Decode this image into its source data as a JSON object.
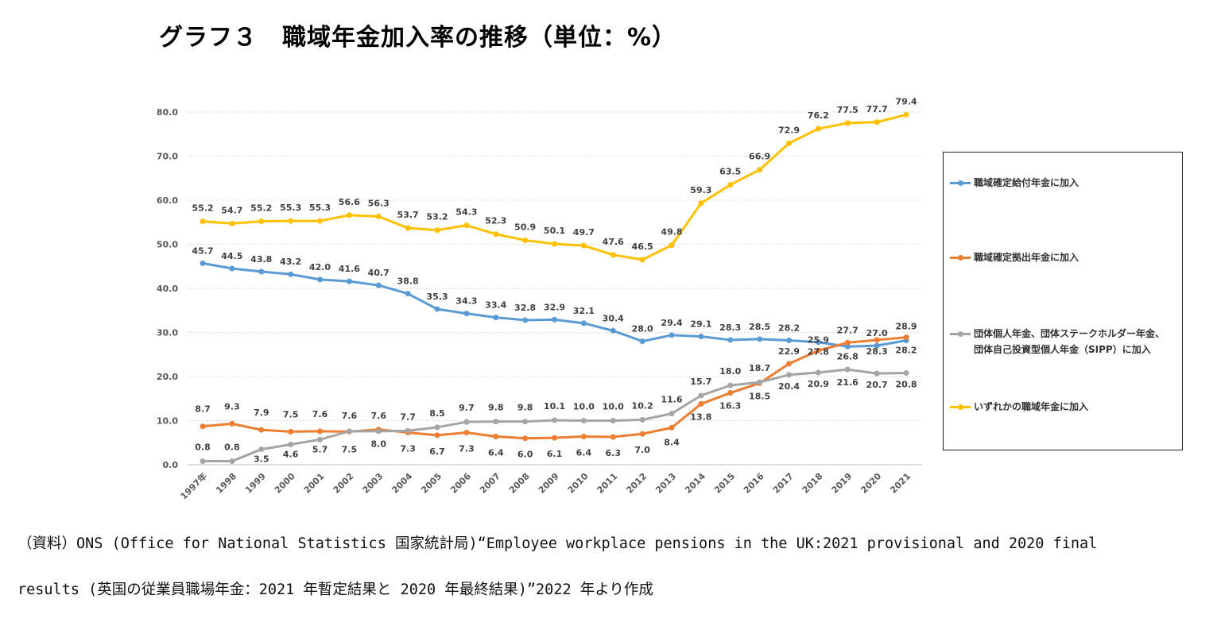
{
  "page": {
    "title": "グラフ３　職域年金加入率の推移（単位：%）",
    "source_line1": "（資料）ONS (Office for National Statistics 国家統計局)“Employee workplace pensions in the UK:2021 provisional and 2020 final",
    "source_line2": "results (英国の従業員職場年金：2021 年暫定結果と 2020 年最終結果)”2022 年より作成"
  },
  "chart_data": {
    "type": "line",
    "title": "グラフ３　職域年金加入率の推移（単位：%）",
    "categories": [
      "1997年",
      "1998",
      "1999",
      "2000",
      "2001",
      "2002",
      "2003",
      "2004",
      "2005",
      "2006",
      "2007",
      "2008",
      "2009",
      "2010",
      "2011",
      "2012",
      "2013",
      "2014",
      "2015",
      "2016",
      "2017",
      "2018",
      "2019",
      "2020",
      "2021"
    ],
    "ylim": [
      0,
      80
    ],
    "yticks": [
      "0.0",
      "10.0",
      "20.0",
      "30.0",
      "40.0",
      "50.0",
      "60.0",
      "70.0",
      "80.0"
    ],
    "ytick_values": [
      0,
      10,
      20,
      30,
      40,
      50,
      60,
      70,
      80
    ],
    "grid": true,
    "legend_position": "right",
    "series": [
      {
        "name": "職域確定給付年金に加入",
        "color": "#5B9BD5",
        "values": [
          45.7,
          44.5,
          43.8,
          43.2,
          42.0,
          41.6,
          40.7,
          38.8,
          35.3,
          34.3,
          33.4,
          32.8,
          32.9,
          32.1,
          30.4,
          28.0,
          29.4,
          29.1,
          28.3,
          28.5,
          28.2,
          27.8,
          26.8,
          27.0,
          28.2
        ],
        "labels": [
          "45.7",
          "44.5",
          "43.8",
          "43.2",
          "42.0",
          "41.6",
          "40.7",
          "38.8",
          "35.3",
          "34.3",
          "33.4",
          "32.8",
          "32.9",
          "32.1",
          "30.4",
          "28.0",
          "29.4",
          "29.1",
          "28.3",
          "28.5",
          "28.2",
          "27.8",
          "26.8",
          "27.0",
          "28.2"
        ]
      },
      {
        "name": "職域確定拠出年金に加入",
        "color": "#ED7D31",
        "values": [
          8.7,
          9.3,
          7.9,
          7.5,
          7.6,
          7.5,
          8.0,
          7.3,
          6.7,
          7.3,
          6.4,
          6.0,
          6.1,
          6.4,
          6.3,
          7.0,
          8.4,
          13.8,
          16.3,
          18.5,
          22.9,
          25.9,
          27.7,
          28.3,
          28.9
        ],
        "labels": [
          "8.7",
          "9.3",
          "7.9",
          "7.5",
          "7.6",
          "7.5",
          "8.0",
          "7.3",
          "6.7",
          "7.3",
          "6.4",
          "6.0",
          "6.1",
          "6.4",
          "6.3",
          "7.0",
          "8.4",
          "13.8",
          "16.3",
          "18.5",
          "22.9",
          "25.9",
          "27.7",
          "28.3",
          "28.9"
        ]
      },
      {
        "name": "団体個人年金、団体ステークホルダー年金、\n団体自己投資型個人年金（SIPP）に加入",
        "color": "#A5A5A5",
        "values": [
          0.8,
          0.8,
          3.5,
          4.6,
          5.7,
          7.6,
          7.6,
          7.7,
          8.5,
          9.7,
          9.8,
          9.8,
          10.1,
          10.0,
          10.0,
          10.2,
          11.6,
          15.7,
          18.0,
          18.7,
          20.4,
          20.9,
          21.6,
          20.7,
          20.8
        ],
        "labels": [
          "0.8",
          "0.8",
          "3.5",
          "4.6",
          "5.7",
          "7.6",
          "7.6",
          "7.7",
          "8.5",
          "9.7",
          "9.8",
          "9.8",
          "10.1",
          "10.0",
          "10.0",
          "10.2",
          "11.6",
          "15.7",
          "18.0",
          "18.7",
          "20.4",
          "20.9",
          "21.6",
          "20.7",
          "20.8"
        ]
      },
      {
        "name": "いずれかの職域年金に加入",
        "color": "#FFC000",
        "values": [
          55.2,
          54.7,
          55.2,
          55.3,
          55.3,
          56.6,
          56.3,
          53.7,
          53.2,
          54.3,
          52.3,
          50.9,
          50.1,
          49.7,
          47.6,
          46.5,
          49.8,
          59.3,
          63.5,
          66.9,
          72.9,
          76.2,
          77.5,
          77.7,
          79.4
        ],
        "labels": [
          "55.2",
          "54.7",
          "55.2",
          "55.3",
          "55.3",
          "56.6",
          "56.3",
          "53.7",
          "53.2",
          "54.3",
          "52.3",
          "50.9",
          "50.1",
          "49.7",
          "47.6",
          "46.5",
          "49.8",
          "59.3",
          "63.5",
          "66.9",
          "72.9",
          "76.2",
          "77.5",
          "77.7",
          "79.4"
        ]
      }
    ]
  }
}
